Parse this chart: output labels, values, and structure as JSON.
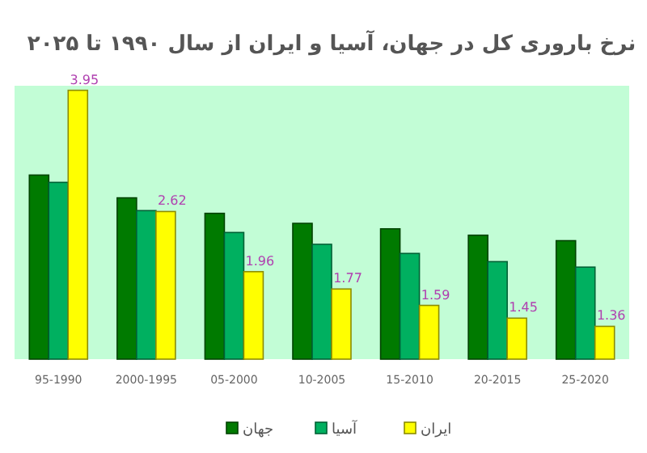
{
  "chart_data": {
    "type": "bar",
    "title": "نرخ باروری کل در جهان، آسیا و ایران از سال ۱۹۹۰ تا ۲۰۲۵",
    "categories": [
      "95-1990",
      "2000-1995",
      "05-2000",
      "10-2005",
      "15-2010",
      "20-2015",
      "25-2020"
    ],
    "series": [
      {
        "name": "جهان",
        "color": "#007a00",
        "values": [
          3.02,
          2.77,
          2.6,
          2.49,
          2.43,
          2.36,
          2.3
        ]
      },
      {
        "name": "آسیا",
        "color": "#00b060",
        "values": [
          2.94,
          2.63,
          2.39,
          2.26,
          2.16,
          2.07,
          2.01
        ]
      },
      {
        "name": "ایران",
        "color": "#ffff00",
        "values": [
          3.95,
          2.62,
          1.96,
          1.77,
          1.59,
          1.45,
          1.36
        ],
        "value_labels": [
          "3.95",
          "2.62",
          "1.96",
          "1.77",
          "1.59",
          "1.45",
          "1.36"
        ]
      }
    ],
    "ylim": [
      1,
      4
    ],
    "tick_labels": "x",
    "legend": "bottom"
  }
}
